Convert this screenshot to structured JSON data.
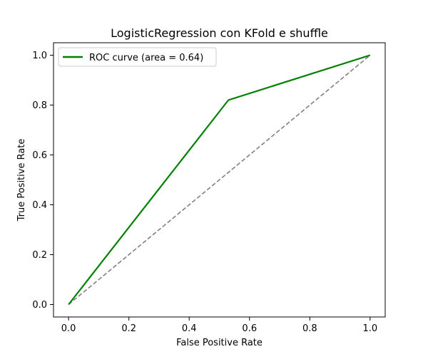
{
  "chart_data": {
    "type": "line",
    "title": "LogisticRegression con KFold e shuffle",
    "xlabel": "False Positive Rate",
    "ylabel": "True Positive Rate",
    "xlim": [
      -0.05,
      1.05
    ],
    "ylim": [
      -0.05,
      1.05
    ],
    "xticks": [
      0.0,
      0.2,
      0.4,
      0.6,
      0.8,
      1.0
    ],
    "yticks": [
      0.0,
      0.2,
      0.4,
      0.6,
      0.8,
      1.0
    ],
    "xtick_labels": [
      "0.0",
      "0.2",
      "0.4",
      "0.6",
      "0.8",
      "1.0"
    ],
    "ytick_labels": [
      "0.0",
      "0.2",
      "0.4",
      "0.6",
      "0.8",
      "1.0"
    ],
    "grid": false,
    "legend_position": "top-left",
    "series": [
      {
        "name": "ROC curve (area = 0.64)",
        "color": "#008000",
        "style": "solid",
        "x": [
          0.0,
          0.53,
          1.0
        ],
        "y": [
          0.0,
          0.82,
          1.0
        ]
      },
      {
        "color": "#808080",
        "style": "dashed",
        "x": [
          0.0,
          1.0
        ],
        "y": [
          0.0,
          1.0
        ]
      }
    ]
  }
}
